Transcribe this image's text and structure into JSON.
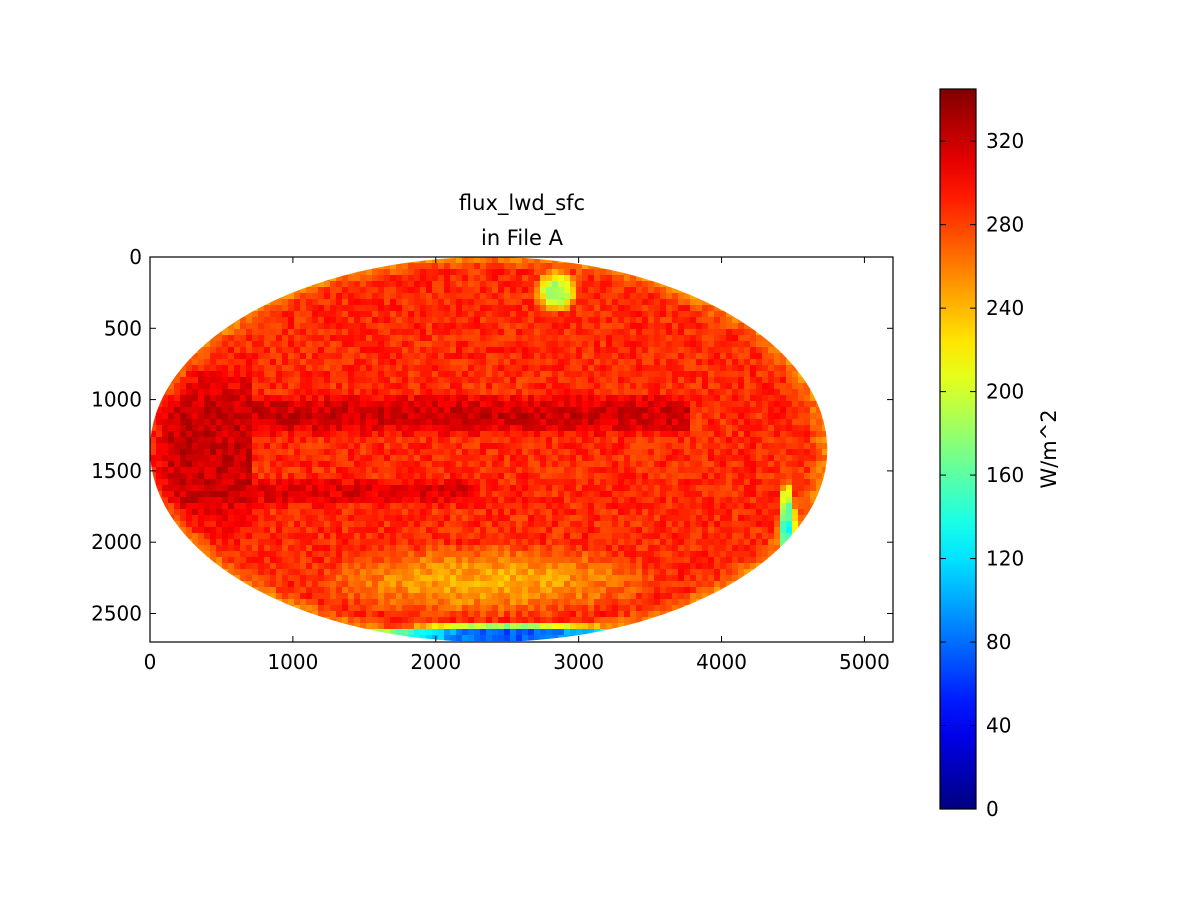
{
  "chart_data": {
    "type": "heatmap",
    "title_lines": [
      "flux_lwd_sfc",
      "in File A"
    ],
    "xlabel": "",
    "ylabel": "",
    "xlim": [
      0,
      5200
    ],
    "ylim": [
      2700,
      0
    ],
    "xticks": [
      0,
      1000,
      2000,
      3000,
      4000,
      5000
    ],
    "yticks": [
      0,
      500,
      1000,
      1500,
      2000,
      2500
    ],
    "colormap": "jet",
    "colorbar": {
      "label": "W/m^2",
      "range": [
        0,
        345
      ],
      "ticks": [
        0,
        40,
        80,
        120,
        160,
        200,
        240,
        280,
        320
      ]
    },
    "disk": {
      "center": [
        2370,
        1350
      ],
      "semi_axes": [
        2370,
        1350
      ]
    },
    "field": {
      "background": 288,
      "bands": [
        {
          "name": "tropical-warm-belt",
          "lon_start": -1.0,
          "lon_end": 0.6,
          "lat_center": 0.18,
          "lat_half_width": 0.12,
          "value": 318
        },
        {
          "name": "southern-warm-belt",
          "lon_start": -1.0,
          "lon_end": -0.05,
          "lat_center": -0.22,
          "lat_half_width": 0.08,
          "value": 312
        },
        {
          "name": "western-warm-region",
          "lon_start": -1.0,
          "lon_end": -0.7,
          "lat_center": 0.0,
          "lat_half_width": 0.5,
          "value": 320
        }
      ],
      "cool_regions": [
        {
          "name": "southern-cool-region",
          "lon_center": 0.0,
          "lat_center": -0.68,
          "lon_half": 0.55,
          "lat_half": 0.2,
          "value": 245
        },
        {
          "name": "north-american-coast",
          "lon_center": 0.2,
          "lat_center": 0.82,
          "lon_half": 0.07,
          "lat_half": 0.12,
          "value": 175
        },
        {
          "name": "andes-cold-strip",
          "lon_center": 0.88,
          "lat_center": -0.38,
          "lon_half": 0.03,
          "lat_half": 0.25,
          "value": 150
        },
        {
          "name": "south-polar-edge",
          "lon_center": 0.05,
          "lat_center": -0.96,
          "lon_half": 0.45,
          "lat_half": 0.06,
          "value": 70
        }
      ]
    }
  }
}
